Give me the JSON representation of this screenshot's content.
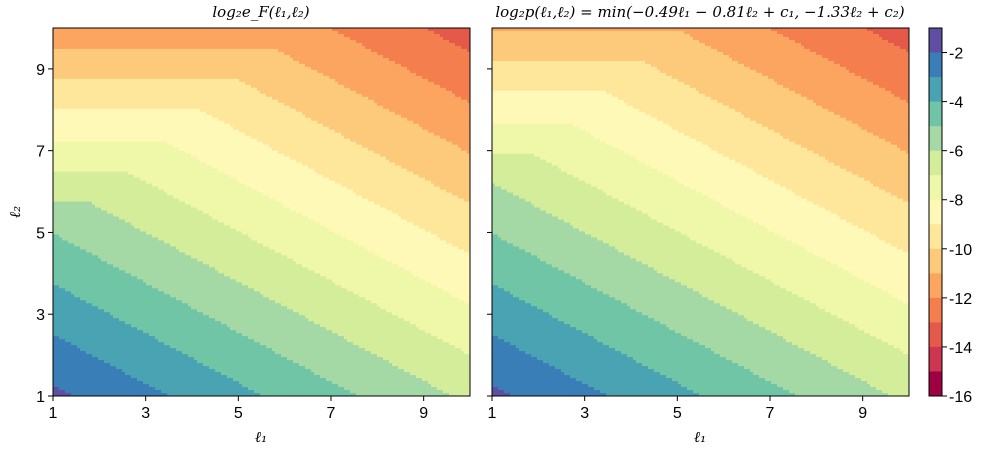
{
  "chart_data": [
    {
      "type": "heatmap",
      "title": "log₂e_F(ℓ₁,ℓ₂)",
      "xlabel": "ℓ₁",
      "ylabel": "ℓ₂",
      "xlim": [
        1,
        10
      ],
      "ylim": [
        1,
        10
      ],
      "xticks": [
        "1",
        "3",
        "5",
        "7",
        "9"
      ],
      "yticks": [
        "1",
        "3",
        "5",
        "7",
        "9"
      ],
      "model": "-0.49*l1 - 0.81*l2 (capped at -1.33*l2 near top-right)"
    },
    {
      "type": "heatmap",
      "title": "log₂p(ℓ₁,ℓ₂) = min(−0.49ℓ₁ − 0.81ℓ₂ + c₁, −1.33ℓ₂ + c₂)",
      "xlabel": "ℓ₁",
      "xlim": [
        1,
        10
      ],
      "ylim": [
        1,
        10
      ],
      "xticks": [
        "1",
        "3",
        "5",
        "7",
        "9"
      ],
      "model": "min(-0.49*l1 - 0.81*l2 + c1, -1.33*l2 + c2)"
    }
  ],
  "colorbar": {
    "range": [
      -16,
      -1
    ],
    "ticks": [
      "-2",
      "-4",
      "-6",
      "-8",
      "-10",
      "-12",
      "-14",
      "-16"
    ],
    "colors": [
      "#5e4fa2",
      "#3a7eb8",
      "#49a3b3",
      "#6fc5a5",
      "#a4d8a4",
      "#d4ed9b",
      "#eff8a8",
      "#fef9b7",
      "#fee69a",
      "#fdca7b",
      "#fba560",
      "#f47e4e",
      "#e4594a",
      "#cd3550",
      "#9e0142"
    ]
  }
}
